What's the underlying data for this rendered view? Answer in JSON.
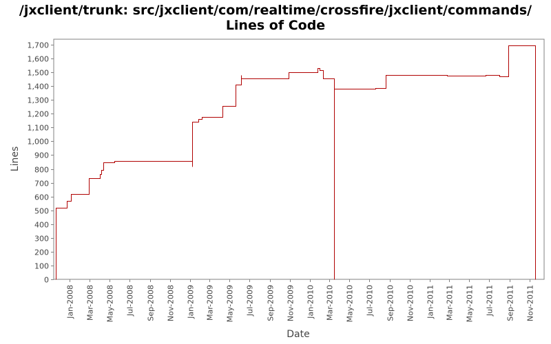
{
  "chart_data": {
    "type": "line",
    "title": "/jxclient/trunk: src/jxclient/com/realtime/crossfire/jxclient/commands/",
    "subtitle": "Lines of Code",
    "xlabel": "Date",
    "ylabel": "Lines",
    "ylim": [
      0,
      1740
    ],
    "xlim": [
      "2007-11-13",
      "2011-12-15"
    ],
    "grid": false,
    "line_color": "#b00000",
    "y_ticks": [
      0,
      100,
      200,
      300,
      400,
      500,
      600,
      700,
      800,
      900,
      1000,
      1100,
      1200,
      1300,
      1400,
      1500,
      1600,
      1700
    ],
    "y_tick_labels": [
      "0",
      "100",
      "200",
      "300",
      "400",
      "500",
      "600",
      "700",
      "800",
      "900",
      "1,000",
      "1,100",
      "1,200",
      "1,300",
      "1,400",
      "1,500",
      "1,600",
      "1,700"
    ],
    "x_ticks": [
      {
        "date": "2008-01-01",
        "label": "Jan-2008"
      },
      {
        "date": "2008-03-01",
        "label": "Mar-2008"
      },
      {
        "date": "2008-05-01",
        "label": "May-2008"
      },
      {
        "date": "2008-07-01",
        "label": "Jul-2008"
      },
      {
        "date": "2008-09-01",
        "label": "Sep-2008"
      },
      {
        "date": "2008-11-01",
        "label": "Nov-2008"
      },
      {
        "date": "2009-01-01",
        "label": "Jan-2009"
      },
      {
        "date": "2009-03-01",
        "label": "Mar-2009"
      },
      {
        "date": "2009-05-01",
        "label": "May-2009"
      },
      {
        "date": "2009-07-01",
        "label": "Jul-2009"
      },
      {
        "date": "2009-09-01",
        "label": "Sep-2009"
      },
      {
        "date": "2009-11-01",
        "label": "Nov-2009"
      },
      {
        "date": "2010-01-01",
        "label": "Jan-2010"
      },
      {
        "date": "2010-03-01",
        "label": "Mar-2010"
      },
      {
        "date": "2010-05-01",
        "label": "May-2010"
      },
      {
        "date": "2010-07-01",
        "label": "Jul-2010"
      },
      {
        "date": "2010-09-01",
        "label": "Sep-2010"
      },
      {
        "date": "2010-11-01",
        "label": "Nov-2010"
      },
      {
        "date": "2011-01-01",
        "label": "Jan-2011"
      },
      {
        "date": "2011-03-01",
        "label": "Mar-2011"
      },
      {
        "date": "2011-05-01",
        "label": "May-2011"
      },
      {
        "date": "2011-07-01",
        "label": "Jul-2011"
      },
      {
        "date": "2011-09-01",
        "label": "Sep-2011"
      },
      {
        "date": "2011-11-01",
        "label": "Nov-2011"
      }
    ],
    "series": [
      {
        "points": [
          [
            "2007-11-19",
            0
          ],
          [
            "2007-11-19",
            520
          ],
          [
            "2007-12-22",
            520
          ],
          [
            "2007-12-22",
            570
          ],
          [
            "2008-01-04",
            570
          ],
          [
            "2008-01-04",
            620
          ],
          [
            "2008-02-27",
            620
          ],
          [
            "2008-02-27",
            735
          ],
          [
            "2008-04-01",
            735
          ],
          [
            "2008-04-01",
            765
          ],
          [
            "2008-04-06",
            765
          ],
          [
            "2008-04-06",
            795
          ],
          [
            "2008-04-11",
            795
          ],
          [
            "2008-04-11",
            850
          ],
          [
            "2008-05-15",
            850
          ],
          [
            "2008-05-15",
            860
          ],
          [
            "2009-01-07",
            860
          ],
          [
            "2009-01-07",
            820
          ],
          [
            "2009-01-07",
            1140
          ],
          [
            "2009-01-27",
            1140
          ],
          [
            "2009-01-27",
            1160
          ],
          [
            "2009-02-06",
            1160
          ],
          [
            "2009-02-06",
            1175
          ],
          [
            "2009-04-10",
            1175
          ],
          [
            "2009-04-10",
            1255
          ],
          [
            "2009-05-20",
            1255
          ],
          [
            "2009-05-20",
            1410
          ],
          [
            "2009-06-05",
            1410
          ],
          [
            "2009-06-05",
            1480
          ],
          [
            "2009-06-06",
            1455
          ],
          [
            "2009-10-28",
            1455
          ],
          [
            "2009-10-28",
            1500
          ],
          [
            "2010-01-24",
            1500
          ],
          [
            "2010-01-24",
            1530
          ],
          [
            "2010-01-31",
            1530
          ],
          [
            "2010-01-31",
            1515
          ],
          [
            "2010-02-10",
            1515
          ],
          [
            "2010-02-10",
            1455
          ],
          [
            "2010-03-15",
            1455
          ],
          [
            "2010-03-15",
            0
          ],
          [
            "2010-03-16",
            0
          ],
          [
            "2010-03-16",
            1380
          ],
          [
            "2010-07-19",
            1380
          ],
          [
            "2010-07-19",
            1385
          ],
          [
            "2010-08-19",
            1385
          ],
          [
            "2010-08-19",
            1480
          ],
          [
            "2011-02-22",
            1480
          ],
          [
            "2011-02-22",
            1475
          ],
          [
            "2011-06-20",
            1475
          ],
          [
            "2011-06-20",
            1480
          ],
          [
            "2011-08-01",
            1480
          ],
          [
            "2011-08-01",
            1470
          ],
          [
            "2011-08-29",
            1470
          ],
          [
            "2011-08-29",
            1695
          ],
          [
            "2011-11-17",
            1695
          ],
          [
            "2011-11-17",
            0
          ]
        ]
      }
    ]
  }
}
